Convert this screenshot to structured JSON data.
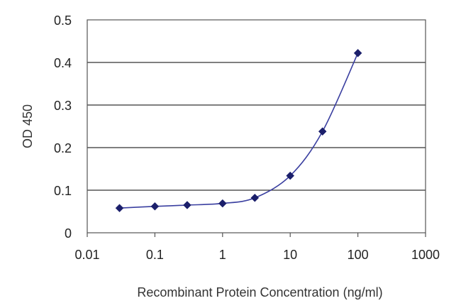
{
  "chart_data": {
    "type": "scatter",
    "title": "",
    "xlabel": "Recombinant Protein Concentration (ng/ml)",
    "ylabel": "OD 450",
    "x_scale": "log",
    "xlim": [
      0.01,
      1000
    ],
    "ylim": [
      0,
      0.5
    ],
    "x_ticks": [
      "0.01",
      "0.1",
      "1",
      "10",
      "100",
      "1000"
    ],
    "y_ticks": [
      "0",
      "0.1",
      "0.2",
      "0.3",
      "0.4",
      "0.5"
    ],
    "grid": "horizontal",
    "legend": "none",
    "series": [
      {
        "x": [
          0.03,
          0.1,
          0.3,
          1,
          3,
          10,
          30,
          100
        ],
        "y": [
          0.058,
          0.062,
          0.065,
          0.069,
          0.082,
          0.134,
          0.238,
          0.422
        ],
        "color": "#1b1f6b",
        "line": "smooth",
        "marker": "diamond"
      }
    ]
  }
}
